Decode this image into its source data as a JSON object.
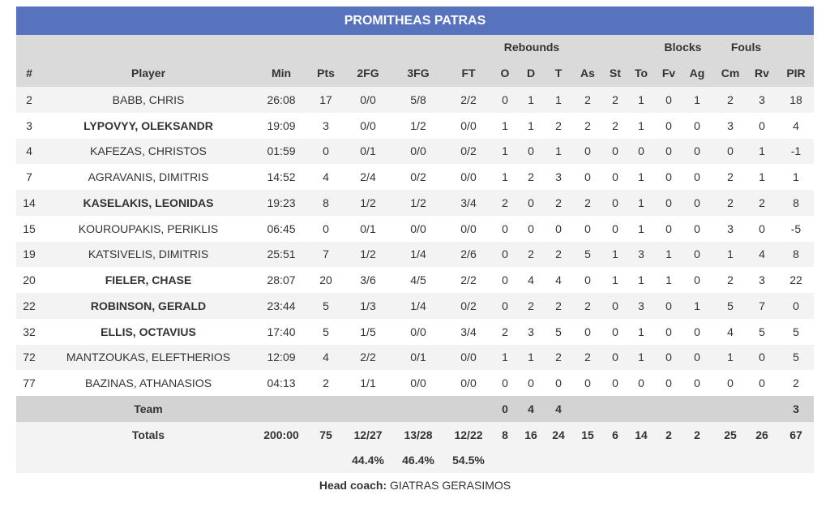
{
  "title": "PROMITHEAS PATRAS",
  "group_headers": [
    {
      "label": "Rebounds",
      "from": 8,
      "to": 10
    },
    {
      "label": "Blocks",
      "from": 14,
      "to": 15
    },
    {
      "label": "Fouls",
      "from": 16,
      "to": 17
    }
  ],
  "columns": [
    "#",
    "Player",
    "Min",
    "Pts",
    "2FG",
    "3FG",
    "FT",
    "O",
    "D",
    "T",
    "As",
    "St",
    "To",
    "Fv",
    "Ag",
    "Cm",
    "Rv",
    "PIR"
  ],
  "rows": [
    {
      "cells": [
        2,
        "BABB, CHRIS",
        "26:08",
        17,
        "0/0",
        "5/8",
        "2/2",
        0,
        1,
        1,
        2,
        2,
        1,
        0,
        1,
        2,
        3,
        18
      ]
    },
    {
      "cells": [
        3,
        "LYPOVYY, OLEKSANDR",
        "19:09",
        3,
        "0/0",
        "1/2",
        "0/0",
        1,
        1,
        2,
        2,
        2,
        1,
        0,
        0,
        3,
        0,
        4
      ],
      "bold": true
    },
    {
      "cells": [
        4,
        "KAFEZAS, CHRISTOS",
        "01:59",
        0,
        "0/1",
        "0/0",
        "0/2",
        1,
        0,
        1,
        0,
        0,
        0,
        0,
        0,
        0,
        1,
        -1
      ]
    },
    {
      "cells": [
        7,
        "AGRAVANIS, DIMITRIS",
        "14:52",
        4,
        "2/4",
        "0/2",
        "0/0",
        1,
        2,
        3,
        0,
        0,
        1,
        0,
        0,
        2,
        1,
        1
      ]
    },
    {
      "cells": [
        14,
        "KASELAKIS, LEONIDAS",
        "19:23",
        8,
        "1/2",
        "1/2",
        "3/4",
        2,
        0,
        2,
        2,
        0,
        1,
        0,
        0,
        2,
        2,
        8
      ],
      "bold": true
    },
    {
      "cells": [
        15,
        "KOUROUPAKIS, PERIKLIS",
        "06:45",
        0,
        "0/1",
        "0/0",
        "0/0",
        0,
        0,
        0,
        0,
        0,
        1,
        0,
        0,
        3,
        0,
        -5
      ]
    },
    {
      "cells": [
        19,
        "KATSIVELIS, DIMITRIS",
        "25:51",
        7,
        "1/2",
        "1/4",
        "2/6",
        0,
        2,
        2,
        5,
        1,
        3,
        1,
        0,
        1,
        4,
        8
      ]
    },
    {
      "cells": [
        20,
        "FIELER, CHASE",
        "28:07",
        20,
        "3/6",
        "4/5",
        "2/2",
        0,
        4,
        4,
        0,
        1,
        1,
        1,
        0,
        2,
        3,
        22
      ],
      "bold": true
    },
    {
      "cells": [
        22,
        "ROBINSON, GERALD",
        "23:44",
        5,
        "1/3",
        "1/4",
        "0/2",
        0,
        2,
        2,
        2,
        0,
        3,
        0,
        1,
        5,
        7,
        0
      ],
      "bold": true
    },
    {
      "cells": [
        32,
        "ELLIS, OCTAVIUS",
        "17:40",
        5,
        "1/5",
        "0/0",
        "3/4",
        2,
        3,
        5,
        0,
        0,
        1,
        0,
        0,
        4,
        5,
        5
      ],
      "bold": true
    },
    {
      "cells": [
        72,
        "MANTZOUKAS, ELEFTHERIOS",
        "12:09",
        4,
        "2/2",
        "0/1",
        "0/0",
        1,
        1,
        2,
        2,
        0,
        1,
        0,
        0,
        1,
        0,
        5
      ]
    },
    {
      "cells": [
        77,
        "BAZINAS, ATHANASIOS",
        "04:13",
        2,
        "1/1",
        "0/0",
        "0/0",
        0,
        0,
        0,
        0,
        0,
        0,
        0,
        0,
        0,
        0,
        2
      ]
    }
  ],
  "team": [
    null,
    "Team",
    null,
    null,
    null,
    null,
    null,
    0,
    4,
    4,
    null,
    null,
    null,
    null,
    null,
    null,
    null,
    3
  ],
  "totals": [
    null,
    "Totals",
    "200:00",
    75,
    "12/27",
    "13/28",
    "12/22",
    8,
    16,
    24,
    15,
    6,
    14,
    2,
    2,
    25,
    26,
    67
  ],
  "percentages": [
    null,
    null,
    null,
    null,
    "44.4%",
    "46.4%",
    "54.5%",
    null,
    null,
    null,
    null,
    null,
    null,
    null,
    null,
    null,
    null,
    null
  ],
  "coach": {
    "label": "Head coach:",
    "name": "GIATRAS GERASIMOS"
  }
}
